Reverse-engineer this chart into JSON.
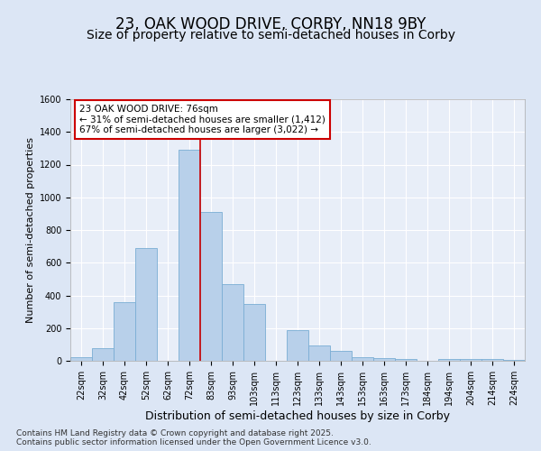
{
  "title": "23, OAK WOOD DRIVE, CORBY, NN18 9BY",
  "subtitle": "Size of property relative to semi-detached houses in Corby",
  "xlabel": "Distribution of semi-detached houses by size in Corby",
  "ylabel": "Number of semi-detached properties",
  "categories": [
    "22sqm",
    "32sqm",
    "42sqm",
    "52sqm",
    "62sqm",
    "72sqm",
    "83sqm",
    "93sqm",
    "103sqm",
    "113sqm",
    "123sqm",
    "133sqm",
    "143sqm",
    "153sqm",
    "163sqm",
    "173sqm",
    "184sqm",
    "194sqm",
    "204sqm",
    "214sqm",
    "224sqm"
  ],
  "values": [
    20,
    80,
    360,
    690,
    0,
    1290,
    910,
    470,
    350,
    0,
    190,
    95,
    60,
    20,
    15,
    10,
    0,
    10,
    10,
    10,
    5
  ],
  "bar_color": "#b8d0ea",
  "bar_edge_color": "#7aadd4",
  "vline_index": 5,
  "annotation_text": "23 OAK WOOD DRIVE: 76sqm\n← 31% of semi-detached houses are smaller (1,412)\n67% of semi-detached houses are larger (3,022) →",
  "annotation_box_color": "#ffffff",
  "annotation_box_edge": "#cc0000",
  "ylim": [
    0,
    1600
  ],
  "yticks": [
    0,
    200,
    400,
    600,
    800,
    1000,
    1200,
    1400,
    1600
  ],
  "bg_color": "#dce6f5",
  "plot_bg_color": "#e8eef8",
  "footer": "Contains HM Land Registry data © Crown copyright and database right 2025.\nContains public sector information licensed under the Open Government Licence v3.0.",
  "title_fontsize": 12,
  "subtitle_fontsize": 10,
  "ylabel_fontsize": 8,
  "xlabel_fontsize": 9,
  "tick_fontsize": 7,
  "footer_fontsize": 6.5,
  "ann_fontsize": 7.5
}
